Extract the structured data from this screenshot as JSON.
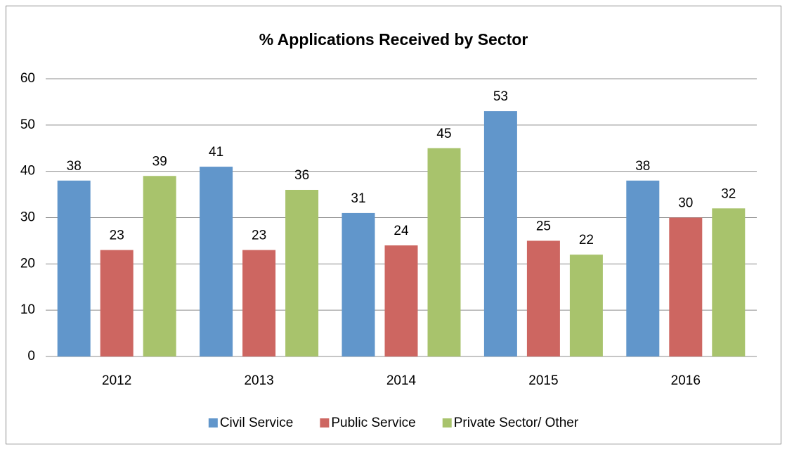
{
  "chart_data": {
    "type": "bar",
    "title": "% Applications Received by Sector",
    "categories": [
      "2012",
      "2013",
      "2014",
      "2015",
      "2016"
    ],
    "series": [
      {
        "name": "Civil Service",
        "color": "#6196cb",
        "values": [
          38,
          41,
          31,
          53,
          38
        ]
      },
      {
        "name": "Public Service",
        "color": "#cd6661",
        "values": [
          23,
          23,
          24,
          25,
          30
        ]
      },
      {
        "name": "Private Sector/ Other",
        "color": "#a8c36c",
        "values": [
          39,
          36,
          45,
          22,
          32
        ]
      }
    ],
    "ylim": [
      0,
      60
    ],
    "yticks": [
      0,
      10,
      20,
      30,
      40,
      50,
      60
    ],
    "grid": true,
    "legend": "bottom"
  }
}
